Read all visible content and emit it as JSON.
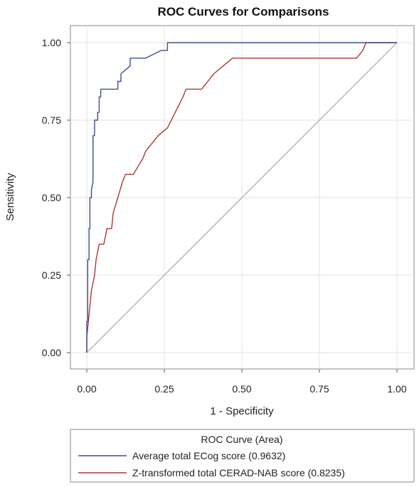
{
  "chart_data": {
    "type": "line",
    "title": "ROC Curves for Comparisons",
    "xlabel": "1 - Specificity",
    "ylabel": "Sensitivity",
    "xlim": [
      0,
      1
    ],
    "ylim": [
      0,
      1
    ],
    "x_ticks": [
      "0.00",
      "0.25",
      "0.50",
      "0.75",
      "1.00"
    ],
    "y_ticks": [
      "0.00",
      "0.25",
      "0.50",
      "0.75",
      "1.00"
    ],
    "grid": true,
    "legend": {
      "title": "ROC Curve (Area)",
      "placement": "bottom",
      "entries": [
        "Average total ECog score  (0.9632)",
        "Z-transformed total CERAD-NAB score  (0.8235)"
      ]
    },
    "series": [
      {
        "color": "#3d4f8c",
        "points": [
          [
            0,
            0
          ],
          [
            0,
            0.1
          ],
          [
            0.003,
            0.1
          ],
          [
            0.003,
            0.3
          ],
          [
            0.007,
            0.3
          ],
          [
            0.007,
            0.4
          ],
          [
            0.01,
            0.4
          ],
          [
            0.01,
            0.5
          ],
          [
            0.015,
            0.5
          ],
          [
            0.015,
            0.525
          ],
          [
            0.02,
            0.55
          ],
          [
            0.02,
            0.7
          ],
          [
            0.025,
            0.7
          ],
          [
            0.025,
            0.75
          ],
          [
            0.035,
            0.75
          ],
          [
            0.035,
            0.775
          ],
          [
            0.04,
            0.775
          ],
          [
            0.04,
            0.825
          ],
          [
            0.045,
            0.825
          ],
          [
            0.045,
            0.85
          ],
          [
            0.1,
            0.85
          ],
          [
            0.1,
            0.875
          ],
          [
            0.11,
            0.875
          ],
          [
            0.11,
            0.9
          ],
          [
            0.14,
            0.925
          ],
          [
            0.14,
            0.95
          ],
          [
            0.19,
            0.95
          ],
          [
            0.24,
            0.975
          ],
          [
            0.26,
            0.975
          ],
          [
            0.26,
            1.0
          ],
          [
            1.0,
            1.0
          ]
        ]
      },
      {
        "color": "#a83a32",
        "points": [
          [
            0,
            0
          ],
          [
            0,
            0.05
          ],
          [
            0.005,
            0.1
          ],
          [
            0.01,
            0.15
          ],
          [
            0.015,
            0.2
          ],
          [
            0.025,
            0.25
          ],
          [
            0.03,
            0.3
          ],
          [
            0.035,
            0.325
          ],
          [
            0.04,
            0.35
          ],
          [
            0.055,
            0.35
          ],
          [
            0.065,
            0.4
          ],
          [
            0.08,
            0.4
          ],
          [
            0.085,
            0.45
          ],
          [
            0.1,
            0.5
          ],
          [
            0.115,
            0.55
          ],
          [
            0.125,
            0.575
          ],
          [
            0.15,
            0.575
          ],
          [
            0.18,
            0.625
          ],
          [
            0.19,
            0.65
          ],
          [
            0.21,
            0.675
          ],
          [
            0.23,
            0.7
          ],
          [
            0.26,
            0.725
          ],
          [
            0.285,
            0.775
          ],
          [
            0.31,
            0.825
          ],
          [
            0.32,
            0.85
          ],
          [
            0.37,
            0.85
          ],
          [
            0.41,
            0.9
          ],
          [
            0.44,
            0.925
          ],
          [
            0.47,
            0.95
          ],
          [
            0.87,
            0.95
          ],
          [
            0.89,
            0.975
          ],
          [
            0.9,
            1.0
          ],
          [
            1.0,
            1.0
          ]
        ]
      },
      {
        "color": "#a8a8a8",
        "points": [
          [
            0,
            0
          ],
          [
            1,
            1
          ]
        ]
      }
    ]
  }
}
